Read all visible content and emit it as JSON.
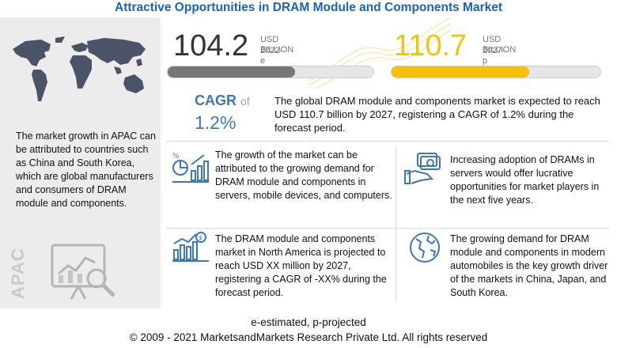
{
  "title": "Attractive Opportunities in DRAM Module and Components Market",
  "apac": {
    "text": "The market growth in APAC can be attributed to countries such as China and South Korea, which are global manufacturers and consumers of DRAM module and components.",
    "vertical_label": "APAC",
    "icons": [
      "world-map",
      "analysis-chart-magnifier"
    ]
  },
  "stats": [
    {
      "value": "104.2",
      "unit": "USD BILLION",
      "year": "2022-e",
      "fill_fraction": 0.62,
      "color": "#777777"
    },
    {
      "value": "110.7",
      "unit": "USD BILLION",
      "year": "2027-p",
      "fill_fraction": 0.66,
      "color": "#f5c10a"
    }
  ],
  "cagr": {
    "label": "CAGR",
    "of": "of",
    "value": "1.2%",
    "text": "The global DRAM module and components market is expected to reach USD 110.7 billion by 2027, registering a CAGR of 1.2% during the forecast period."
  },
  "cards": [
    {
      "icon": "growth-analysis-icon",
      "text": "The growth of the market can be attributed to the growing demand for DRAM module and components in servers, mobile devices, and computers."
    },
    {
      "icon": "money-hand-icon",
      "text": "Increasing adoption of DRAMs in servers would offer lucrative opportunities for market players in the next five years."
    },
    {
      "icon": "dollar-bar-chart-icon",
      "text": "The DRAM module and components market in North America is projected to reach USD XX million by 2027, registering a CAGR of -XX% during the forecast period."
    },
    {
      "icon": "globe-icon",
      "text": "The growing demand for DRAM module and components in modern automobiles is the key growth driver of the markets in China, Japan, and South Korea."
    }
  ],
  "footer": {
    "note": "e-estimated, p-projected",
    "copyright": "© 2009 - 2021 MarketsandMarkets Research Private Ltd. All rights reserved"
  }
}
